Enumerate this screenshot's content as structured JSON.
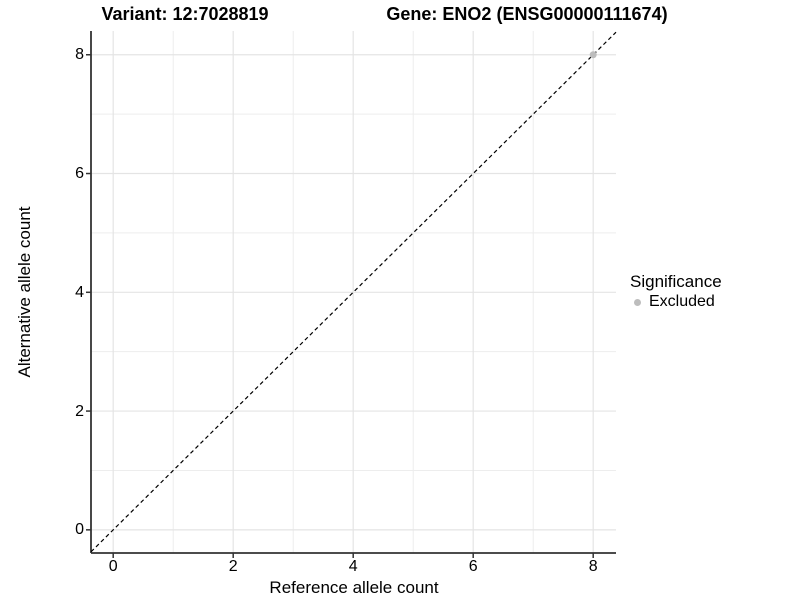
{
  "figure": {
    "titles": {
      "variant": "Variant: 12:7028819",
      "gene": "Gene: ENO2 (ENSG00000111674)"
    },
    "legend": {
      "title": "Significance",
      "items": [
        {
          "label": "Excluded",
          "color": "#bdbdbd"
        }
      ]
    }
  },
  "chart_data": {
    "type": "scatter",
    "title": "Variant: 12:7028819   Gene: ENO2 (ENSG00000111674)",
    "xlabel": "Reference allele count",
    "ylabel": "Alternative allele count",
    "xlim": [
      -0.37,
      8.38
    ],
    "ylim": [
      -0.39,
      8.4
    ],
    "x_ticks": [
      0,
      2,
      4,
      6,
      8
    ],
    "y_ticks": [
      0,
      2,
      4,
      6,
      8
    ],
    "x_minor": [
      1,
      3,
      5,
      7
    ],
    "y_minor": [
      1,
      3,
      5,
      7
    ],
    "grid": "major and minor gridlines on white panel",
    "legend_position": "right",
    "legend_title": "Significance",
    "series": [
      {
        "name": "Excluded",
        "color": "#bdbdbd",
        "points": [
          {
            "x": 8,
            "y": 8
          }
        ]
      }
    ],
    "reference_line": {
      "type": "identity",
      "slope": 1,
      "intercept": 0,
      "style": "dashed",
      "color": "#000000"
    }
  },
  "colors": {
    "background": "#ffffff",
    "grid_major": "#e4e4e4",
    "grid_minor": "#ededed",
    "axis_line": "#333333",
    "tick_mark": "#333333",
    "text": "#000000",
    "excluded_point": "#bdbdbd"
  }
}
